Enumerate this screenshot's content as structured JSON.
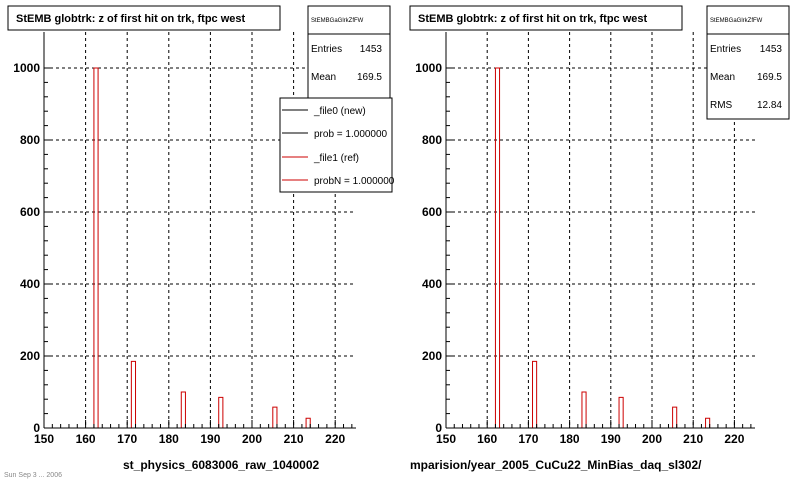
{
  "colors": {
    "ref": "#cc0000",
    "new": "#000000",
    "grid": "#000000"
  },
  "chart_data": [
    {
      "type": "bar",
      "title": "StEMB globtrk: z of first hit on trk, ftpc west",
      "xlim": [
        150,
        225
      ],
      "ylim": [
        0,
        1000
      ],
      "xticks": [
        150,
        160,
        170,
        180,
        190,
        200,
        210,
        220
      ],
      "yticks": [
        0,
        200,
        400,
        600,
        800,
        1000
      ],
      "grid": true,
      "x": [
        162.5,
        171.5,
        183.5,
        192.5,
        205.5,
        213.5
      ],
      "values": [
        1000,
        185,
        100,
        85,
        58,
        27
      ],
      "stats": {
        "title": "StEMBGaGlrkZfFW",
        "entries_label": "Entries",
        "entries": "1453",
        "mean_label": "Mean",
        "mean": "169.5"
      },
      "legend": {
        "position": "top-right",
        "entries": [
          {
            "label": "_file0 (new)",
            "color": "#000000"
          },
          {
            "label": "prob = 1.000000",
            "color": "#000000"
          },
          {
            "label": "_file1 (ref)",
            "color": "#cc0000"
          },
          {
            "label": "probN = 1.000000",
            "color": "#cc0000"
          }
        ]
      },
      "footer": "st_physics_6083006_raw_1040002"
    },
    {
      "type": "bar",
      "title": "StEMB globtrk: z of first hit on trk, ftpc west",
      "xlim": [
        150,
        225
      ],
      "ylim": [
        0,
        1000
      ],
      "xticks": [
        150,
        160,
        170,
        180,
        190,
        200,
        210,
        220
      ],
      "yticks": [
        0,
        200,
        400,
        600,
        800,
        1000
      ],
      "grid": true,
      "x": [
        162.5,
        171.5,
        183.5,
        192.5,
        205.5,
        213.5
      ],
      "values": [
        1000,
        185,
        100,
        85,
        58,
        27
      ],
      "stats": {
        "title": "StEMBGaGlrkZfFW",
        "entries_label": "Entries",
        "entries": "1453",
        "mean_label": "Mean",
        "mean": "169.5",
        "rms_label": "RMS",
        "rms": "12.84"
      },
      "footer": "mparision/year_2005_CuCu22_MinBias_daq_sl302/"
    }
  ],
  "bottom_note": "Sun Sep  3  ... 2006"
}
